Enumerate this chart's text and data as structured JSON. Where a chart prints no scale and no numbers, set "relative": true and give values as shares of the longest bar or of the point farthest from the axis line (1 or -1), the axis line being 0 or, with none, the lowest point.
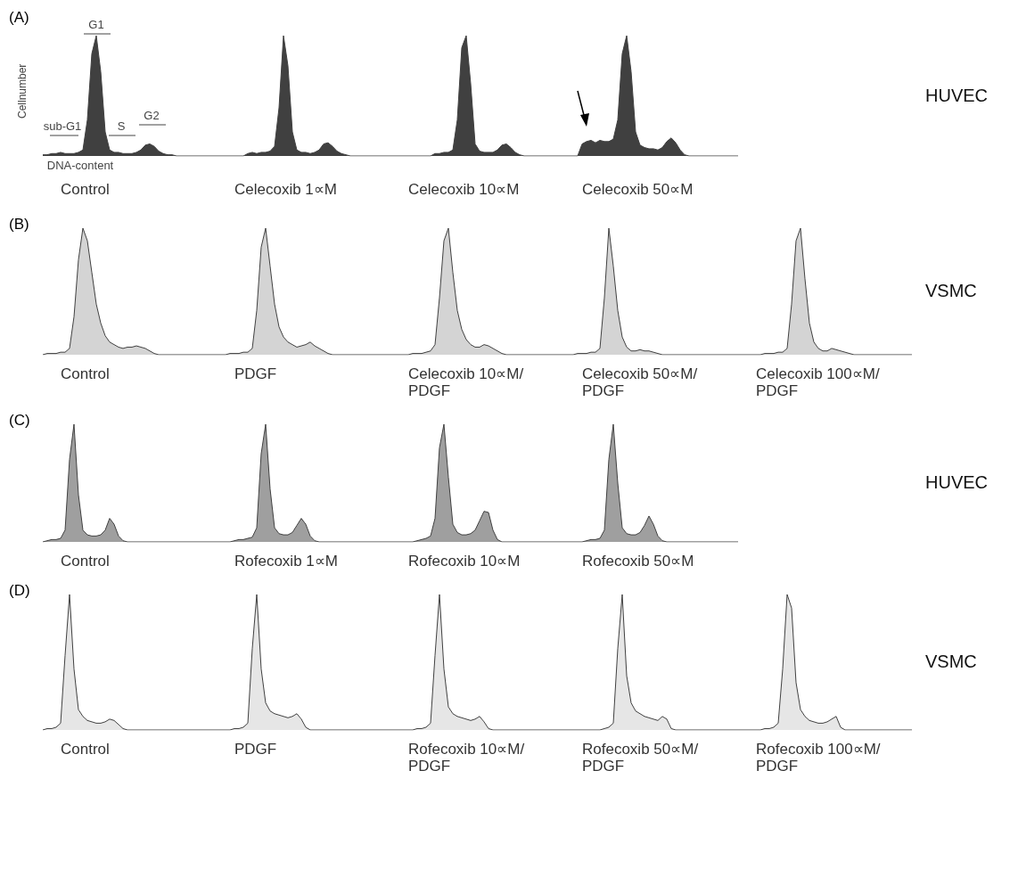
{
  "chart_data": [
    {
      "type": "area",
      "relative": true,
      "title": "(A)",
      "ylabel": "Cellnumber",
      "xlabel": "Control",
      "color": "#404040",
      "annotations": [
        "sub-G1",
        "S",
        "G1",
        "G2",
        "DNA-content"
      ],
      "categories": [
        null,
        null,
        null,
        null,
        null,
        null,
        null,
        null,
        null,
        null,
        null,
        null,
        null,
        null,
        null,
        null,
        null,
        null,
        null,
        null,
        null,
        null,
        null,
        null,
        null,
        null,
        null,
        null,
        null,
        null,
        null,
        null,
        null,
        null,
        null,
        null,
        null,
        null,
        null,
        null
      ],
      "values": [
        0.01,
        0.01,
        0.02,
        0.02,
        0.03,
        0.02,
        0.02,
        0.02,
        0.03,
        0.05,
        0.3,
        0.85,
        1,
        0.7,
        0.2,
        0.05,
        0.03,
        0.03,
        0.02,
        0.02,
        0.02,
        0.03,
        0.05,
        0.09,
        0.1,
        0.08,
        0.04,
        0.02,
        0.01,
        0.01,
        0,
        0,
        0,
        0,
        0,
        0,
        0,
        0,
        0,
        0
      ]
    },
    {
      "type": "area",
      "relative": true,
      "xlabel": "Celecoxib 1∝M",
      "color": "#404040",
      "categories": [
        null,
        null,
        null,
        null,
        null,
        null,
        null,
        null,
        null,
        null,
        null,
        null,
        null,
        null,
        null,
        null,
        null,
        null,
        null,
        null,
        null,
        null,
        null,
        null,
        null,
        null,
        null,
        null,
        null,
        null,
        null,
        null,
        null,
        null,
        null,
        null,
        null,
        null,
        null,
        null
      ],
      "values": [
        0,
        0,
        0,
        0,
        0,
        0,
        0,
        0.02,
        0.03,
        0.02,
        0.03,
        0.03,
        0.04,
        0.08,
        0.4,
        1,
        0.75,
        0.2,
        0.05,
        0.03,
        0.03,
        0.02,
        0.03,
        0.05,
        0.1,
        0.11,
        0.08,
        0.04,
        0.02,
        0.01,
        0,
        0,
        0,
        0,
        0,
        0,
        0,
        0,
        0,
        0
      ]
    },
    {
      "type": "area",
      "relative": true,
      "xlabel": "Celecoxib 10∝M",
      "color": "#404040",
      "categories": [
        null,
        null,
        null,
        null,
        null,
        null,
        null,
        null,
        null,
        null,
        null,
        null,
        null,
        null,
        null,
        null,
        null,
        null,
        null,
        null,
        null,
        null,
        null,
        null,
        null,
        null,
        null,
        null,
        null,
        null,
        null,
        null,
        null,
        null,
        null,
        null,
        null,
        null,
        null,
        null
      ],
      "values": [
        0,
        0,
        0,
        0,
        0,
        0,
        0,
        0,
        0,
        0,
        0.02,
        0.02,
        0.03,
        0.03,
        0.05,
        0.3,
        0.9,
        1,
        0.6,
        0.1,
        0.04,
        0.03,
        0.03,
        0.03,
        0.05,
        0.09,
        0.1,
        0.07,
        0.03,
        0.01,
        0,
        0,
        0,
        0,
        0,
        0,
        0,
        0,
        0,
        0
      ]
    },
    {
      "type": "area",
      "relative": true,
      "xlabel": "Celecoxib 50∝M",
      "color": "#404040",
      "annotations": [
        "HUVEC"
      ],
      "categories": [
        null,
        null,
        null,
        null,
        null,
        null,
        null,
        null,
        null,
        null,
        null,
        null,
        null,
        null,
        null,
        null,
        null,
        null,
        null,
        null,
        null,
        null,
        null,
        null,
        null,
        null,
        null,
        null,
        null,
        null,
        null,
        null,
        null,
        null,
        null,
        null,
        null,
        null,
        null,
        null
      ],
      "values": [
        0,
        0,
        0,
        0,
        0.1,
        0.12,
        0.13,
        0.11,
        0.13,
        0.12,
        0.12,
        0.14,
        0.3,
        0.85,
        1,
        0.7,
        0.2,
        0.09,
        0.07,
        0.06,
        0.06,
        0.05,
        0.07,
        0.12,
        0.15,
        0.11,
        0.05,
        0.01,
        0,
        0,
        0,
        0,
        0,
        0,
        0,
        0,
        0,
        0,
        0,
        0
      ]
    },
    {
      "type": "area",
      "relative": true,
      "title": "(B)",
      "xlabel": "Control",
      "color": "#404040",
      "categories": [
        null,
        null,
        null,
        null,
        null,
        null,
        null,
        null,
        null,
        null,
        null,
        null,
        null,
        null,
        null,
        null,
        null,
        null,
        null,
        null,
        null,
        null,
        null,
        null,
        null,
        null,
        null,
        null,
        null,
        null,
        null,
        null,
        null,
        null,
        null,
        null,
        null,
        null,
        null,
        null
      ],
      "values": [
        0,
        0.01,
        0.01,
        0.01,
        0.02,
        0.02,
        0.05,
        0.3,
        0.75,
        1,
        0.9,
        0.65,
        0.4,
        0.25,
        0.15,
        0.1,
        0.08,
        0.06,
        0.05,
        0.06,
        0.06,
        0.07,
        0.06,
        0.05,
        0.03,
        0.01,
        0,
        0,
        0,
        0,
        0,
        0,
        0,
        0,
        0,
        0,
        0,
        0,
        0,
        0
      ]
    },
    {
      "type": "area",
      "relative": true,
      "xlabel": "PDGF",
      "color": "#404040",
      "categories": [
        null,
        null,
        null,
        null,
        null,
        null,
        null,
        null,
        null,
        null,
        null,
        null,
        null,
        null,
        null,
        null,
        null,
        null,
        null,
        null,
        null,
        null,
        null,
        null,
        null,
        null,
        null,
        null,
        null,
        null,
        null,
        null,
        null,
        null,
        null,
        null,
        null,
        null,
        null,
        null
      ],
      "values": [
        0,
        0,
        0,
        0.01,
        0.01,
        0.01,
        0.02,
        0.02,
        0.05,
        0.35,
        0.85,
        1,
        0.7,
        0.4,
        0.22,
        0.14,
        0.1,
        0.08,
        0.06,
        0.07,
        0.08,
        0.1,
        0.07,
        0.05,
        0.03,
        0.01,
        0,
        0,
        0,
        0,
        0,
        0,
        0,
        0,
        0,
        0,
        0,
        0,
        0,
        0
      ]
    },
    {
      "type": "area",
      "relative": true,
      "xlabel": "Celecoxib 10∝M/ PDGF",
      "color": "#404040",
      "categories": [
        null,
        null,
        null,
        null,
        null,
        null,
        null,
        null,
        null,
        null,
        null,
        null,
        null,
        null,
        null,
        null,
        null,
        null,
        null,
        null,
        null,
        null,
        null,
        null,
        null,
        null,
        null,
        null,
        null,
        null,
        null,
        null,
        null,
        null,
        null,
        null,
        null,
        null,
        null,
        null
      ],
      "values": [
        0,
        0,
        0,
        0,
        0,
        0.01,
        0.01,
        0.01,
        0.02,
        0.03,
        0.08,
        0.45,
        0.9,
        1,
        0.65,
        0.35,
        0.2,
        0.12,
        0.08,
        0.06,
        0.06,
        0.08,
        0.07,
        0.05,
        0.03,
        0.01,
        0,
        0,
        0,
        0,
        0,
        0,
        0,
        0,
        0,
        0,
        0,
        0,
        0,
        0
      ]
    },
    {
      "type": "area",
      "relative": true,
      "xlabel": "Celecoxib 50∝M/ PDGF",
      "color": "#404040",
      "categories": [
        null,
        null,
        null,
        null,
        null,
        null,
        null,
        null,
        null,
        null,
        null,
        null,
        null,
        null,
        null,
        null,
        null,
        null,
        null,
        null,
        null,
        null,
        null,
        null,
        null,
        null,
        null,
        null,
        null,
        null,
        null,
        null,
        null,
        null,
        null,
        null,
        null,
        null,
        null,
        null
      ],
      "values": [
        0,
        0,
        0,
        0.01,
        0.01,
        0.01,
        0.02,
        0.02,
        0.05,
        0.45,
        1,
        0.7,
        0.35,
        0.14,
        0.06,
        0.03,
        0.03,
        0.04,
        0.03,
        0.03,
        0.02,
        0.01,
        0,
        0,
        0,
        0,
        0,
        0,
        0,
        0,
        0,
        0,
        0,
        0,
        0,
        0,
        0,
        0,
        0,
        0
      ]
    },
    {
      "type": "area",
      "relative": true,
      "xlabel": "Celecoxib 100∝M/ PDGF",
      "color": "#404040",
      "annotations": [
        "VSMC"
      ],
      "categories": [
        null,
        null,
        null,
        null,
        null,
        null,
        null,
        null,
        null,
        null,
        null,
        null,
        null,
        null,
        null,
        null,
        null,
        null,
        null,
        null,
        null,
        null,
        null,
        null,
        null,
        null,
        null,
        null,
        null,
        null,
        null,
        null,
        null,
        null,
        null,
        null,
        null,
        null,
        null,
        null
      ],
      "values": [
        0,
        0,
        0,
        0,
        0,
        0,
        0.01,
        0.01,
        0.01,
        0.02,
        0.02,
        0.05,
        0.4,
        0.9,
        1,
        0.6,
        0.25,
        0.1,
        0.05,
        0.03,
        0.03,
        0.05,
        0.04,
        0.03,
        0.02,
        0.01,
        0,
        0,
        0,
        0,
        0,
        0,
        0,
        0,
        0,
        0,
        0,
        0,
        0,
        0
      ]
    },
    {
      "type": "area",
      "relative": true,
      "title": "(C)",
      "xlabel": "Control",
      "color": "#404040",
      "categories": [
        null,
        null,
        null,
        null,
        null,
        null,
        null,
        null,
        null,
        null,
        null,
        null,
        null,
        null,
        null,
        null,
        null,
        null,
        null,
        null,
        null,
        null,
        null,
        null,
        null,
        null,
        null,
        null,
        null,
        null,
        null,
        null,
        null,
        null,
        null,
        null,
        null,
        null,
        null,
        null
      ],
      "values": [
        0,
        0.01,
        0.02,
        0.02,
        0.03,
        0.1,
        0.7,
        1,
        0.4,
        0.1,
        0.06,
        0.05,
        0.05,
        0.06,
        0.1,
        0.2,
        0.15,
        0.05,
        0.01,
        0,
        0,
        0,
        0,
        0,
        0,
        0,
        0,
        0,
        0,
        0,
        0,
        0,
        0,
        0,
        0,
        0,
        0,
        0,
        0,
        0
      ]
    },
    {
      "type": "area",
      "relative": true,
      "xlabel": "Rofecoxib 1∝M",
      "color": "#404040",
      "categories": [
        null,
        null,
        null,
        null,
        null,
        null,
        null,
        null,
        null,
        null,
        null,
        null,
        null,
        null,
        null,
        null,
        null,
        null,
        null,
        null,
        null,
        null,
        null,
        null,
        null,
        null,
        null,
        null,
        null,
        null,
        null,
        null,
        null,
        null,
        null,
        null,
        null,
        null,
        null,
        null
      ],
      "values": [
        0,
        0,
        0,
        0,
        0.01,
        0.02,
        0.02,
        0.03,
        0.04,
        0.12,
        0.75,
        1,
        0.45,
        0.12,
        0.07,
        0.06,
        0.06,
        0.08,
        0.14,
        0.2,
        0.15,
        0.05,
        0.01,
        0,
        0,
        0,
        0,
        0,
        0,
        0,
        0,
        0,
        0,
        0,
        0,
        0,
        0,
        0,
        0,
        0
      ]
    },
    {
      "type": "area",
      "relative": true,
      "xlabel": "Rofecoxib 10∝M",
      "color": "#404040",
      "categories": [
        null,
        null,
        null,
        null,
        null,
        null,
        null,
        null,
        null,
        null,
        null,
        null,
        null,
        null,
        null,
        null,
        null,
        null,
        null,
        null,
        null,
        null,
        null,
        null,
        null,
        null,
        null,
        null,
        null,
        null,
        null,
        null,
        null,
        null,
        null,
        null,
        null,
        null,
        null,
        null
      ],
      "values": [
        0,
        0,
        0,
        0,
        0,
        0,
        0.01,
        0.02,
        0.03,
        0.05,
        0.2,
        0.8,
        1,
        0.55,
        0.15,
        0.08,
        0.06,
        0.06,
        0.07,
        0.1,
        0.18,
        0.26,
        0.25,
        0.1,
        0.02,
        0,
        0,
        0,
        0,
        0,
        0,
        0,
        0,
        0,
        0,
        0,
        0,
        0,
        0,
        0
      ]
    },
    {
      "type": "area",
      "relative": true,
      "xlabel": "Rofecoxib 50∝M",
      "color": "#404040",
      "annotations": [
        "HUVEC"
      ],
      "categories": [
        null,
        null,
        null,
        null,
        null,
        null,
        null,
        null,
        null,
        null,
        null,
        null,
        null,
        null,
        null,
        null,
        null,
        null,
        null,
        null,
        null,
        null,
        null,
        null,
        null,
        null,
        null,
        null,
        null,
        null,
        null,
        null,
        null,
        null,
        null,
        null,
        null,
        null,
        null,
        null
      ],
      "values": [
        0,
        0,
        0,
        0,
        0,
        0.01,
        0.02,
        0.02,
        0.03,
        0.1,
        0.7,
        1,
        0.5,
        0.12,
        0.07,
        0.06,
        0.06,
        0.08,
        0.14,
        0.22,
        0.15,
        0.05,
        0.01,
        0,
        0,
        0,
        0,
        0,
        0,
        0,
        0,
        0,
        0,
        0,
        0,
        0,
        0,
        0,
        0,
        0
      ]
    },
    {
      "type": "area",
      "relative": true,
      "title": "(D)",
      "xlabel": "Control",
      "color": "#404040",
      "categories": [
        null,
        null,
        null,
        null,
        null,
        null,
        null,
        null,
        null,
        null,
        null,
        null,
        null,
        null,
        null,
        null,
        null,
        null,
        null,
        null,
        null,
        null,
        null,
        null,
        null,
        null,
        null,
        null,
        null,
        null,
        null,
        null,
        null,
        null,
        null,
        null,
        null,
        null,
        null,
        null
      ],
      "values": [
        0,
        0.01,
        0.01,
        0.02,
        0.05,
        0.55,
        1,
        0.45,
        0.15,
        0.1,
        0.07,
        0.06,
        0.05,
        0.05,
        0.06,
        0.08,
        0.07,
        0.04,
        0.01,
        0,
        0,
        0,
        0,
        0,
        0,
        0,
        0,
        0,
        0,
        0,
        0,
        0,
        0,
        0,
        0,
        0,
        0,
        0,
        0,
        0
      ]
    },
    {
      "type": "area",
      "relative": true,
      "xlabel": "PDGF",
      "color": "#404040",
      "categories": [
        null,
        null,
        null,
        null,
        null,
        null,
        null,
        null,
        null,
        null,
        null,
        null,
        null,
        null,
        null,
        null,
        null,
        null,
        null,
        null,
        null,
        null,
        null,
        null,
        null,
        null,
        null,
        null,
        null,
        null,
        null,
        null,
        null,
        null,
        null,
        null,
        null,
        null,
        null,
        null
      ],
      "values": [
        0,
        0,
        0,
        0,
        0.01,
        0.01,
        0.02,
        0.05,
        0.6,
        1,
        0.45,
        0.2,
        0.14,
        0.12,
        0.11,
        0.1,
        0.09,
        0.1,
        0.12,
        0.08,
        0.02,
        0,
        0,
        0,
        0,
        0,
        0,
        0,
        0,
        0,
        0,
        0,
        0,
        0,
        0,
        0,
        0,
        0,
        0,
        0
      ]
    },
    {
      "type": "area",
      "relative": true,
      "xlabel": "Rofecoxib 10∝M/ PDGF",
      "color": "#404040",
      "categories": [
        null,
        null,
        null,
        null,
        null,
        null,
        null,
        null,
        null,
        null,
        null,
        null,
        null,
        null,
        null,
        null,
        null,
        null,
        null,
        null,
        null,
        null,
        null,
        null,
        null,
        null,
        null,
        null,
        null,
        null,
        null,
        null,
        null,
        null,
        null,
        null,
        null,
        null,
        null,
        null
      ],
      "values": [
        0,
        0,
        0,
        0,
        0,
        0,
        0.01,
        0.01,
        0.02,
        0.05,
        0.55,
        1,
        0.45,
        0.17,
        0.12,
        0.1,
        0.09,
        0.08,
        0.07,
        0.08,
        0.1,
        0.06,
        0.01,
        0,
        0,
        0,
        0,
        0,
        0,
        0,
        0,
        0,
        0,
        0,
        0,
        0,
        0,
        0,
        0,
        0
      ]
    },
    {
      "type": "area",
      "relative": true,
      "xlabel": "Rofecoxib 50∝M/ PDGF",
      "color": "#404040",
      "categories": [
        null,
        null,
        null,
        null,
        null,
        null,
        null,
        null,
        null,
        null,
        null,
        null,
        null,
        null,
        null,
        null,
        null,
        null,
        null,
        null,
        null,
        null,
        null,
        null,
        null,
        null,
        null,
        null,
        null,
        null,
        null,
        null,
        null,
        null,
        null,
        null,
        null,
        null,
        null,
        null
      ],
      "values": [
        0,
        0,
        0,
        0,
        0,
        0,
        0,
        0,
        0,
        0.01,
        0.02,
        0.05,
        0.6,
        1,
        0.4,
        0.2,
        0.14,
        0.12,
        0.1,
        0.09,
        0.08,
        0.07,
        0.1,
        0.08,
        0.01,
        0,
        0,
        0,
        0,
        0,
        0,
        0,
        0,
        0,
        0,
        0,
        0,
        0,
        0,
        0
      ]
    },
    {
      "type": "area",
      "relative": true,
      "xlabel": "Rofecoxib 100∝M/ PDGF",
      "color": "#404040",
      "annotations": [
        "VSMC"
      ],
      "categories": [
        null,
        null,
        null,
        null,
        null,
        null,
        null,
        null,
        null,
        null,
        null,
        null,
        null,
        null,
        null,
        null,
        null,
        null,
        null,
        null,
        null,
        null,
        null,
        null,
        null,
        null,
        null,
        null,
        null,
        null,
        null,
        null,
        null,
        null,
        null,
        null,
        null,
        null,
        null,
        null
      ],
      "values": [
        0,
        0,
        0,
        0,
        0,
        0,
        0.01,
        0.01,
        0.02,
        0.05,
        0.45,
        1,
        0.9,
        0.35,
        0.15,
        0.1,
        0.07,
        0.06,
        0.05,
        0.05,
        0.06,
        0.08,
        0.1,
        0.02,
        0,
        0,
        0,
        0,
        0,
        0,
        0,
        0,
        0,
        0,
        0,
        0,
        0,
        0,
        0,
        0
      ]
    }
  ]
}
